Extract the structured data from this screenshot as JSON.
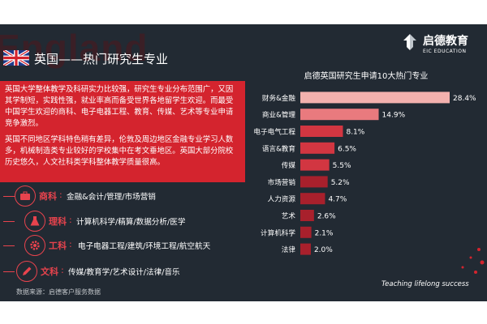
{
  "background_word": "England",
  "page_title": "英国——热门研究生专业",
  "logo": {
    "cn": "启德教育",
    "en": "EIC EDUCATION"
  },
  "intro_paragraphs": [
    "英国大学整体教学及科研实力比较强，研究生专业分布范围广，又因其学制短，实践性强，就业率高而备受世界各地留学生欢迎。而最受中国学生欢迎的商科、电子电器工程、教育、传媒、艺术等专业申请竞争激烈。",
    "英国不同地区学科特色稍有差异，伦敦及周边地区金融专业学习人数多，机械制造类专业较好的学校集中在考文垂地区。英国大部分院校历史悠久，人文社科类学科整体教学质量很高。"
  ],
  "subjects": [
    {
      "name": "商科",
      "detail": "金融&会计/管理/市场营销",
      "icon": "briefcase-icon"
    },
    {
      "name": "理科",
      "detail": "计算机科学/精算/数据分析/医学",
      "icon": "flask-icon"
    },
    {
      "name": "工科",
      "detail": "电子电器工程/建筑/环境工程/航空航天",
      "icon": "gear-icon"
    },
    {
      "name": "文科",
      "detail": "传媒/教育学/艺术设计/法律/音乐",
      "icon": "pen-icon"
    }
  ],
  "source_note": "数据来源：启德客户服务数据",
  "tagline": "Teaching lifelong success",
  "colors": {
    "background": "#222a33",
    "accent": "#d4242e",
    "bar_top": "#f3b1ae",
    "bar_light": "#e97a7e",
    "bar_mid": "#d23641",
    "bar_dark": "#a8202c"
  },
  "chart_data": {
    "type": "bar",
    "orientation": "horizontal",
    "title": "启德英国研究生申请10大热门专业",
    "categories": [
      "财务&金融",
      "商业&管理",
      "电子电气工程",
      "语言&教育",
      "传媒",
      "市场营销",
      "人力资源",
      "艺术",
      "计算机科学",
      "法律"
    ],
    "values": [
      28.4,
      14.9,
      8.1,
      6.5,
      5.5,
      5.2,
      4.7,
      2.6,
      2.1,
      2.0
    ],
    "value_labels": [
      "28.4%",
      "14.9%",
      "8.1%",
      "6.5%",
      "5.5%",
      "5.2%",
      "4.7%",
      "2.6%",
      "2.1%",
      "2.0%"
    ],
    "unit": "%",
    "xlim": [
      0,
      28.4
    ],
    "grid": false,
    "legend": "none"
  }
}
